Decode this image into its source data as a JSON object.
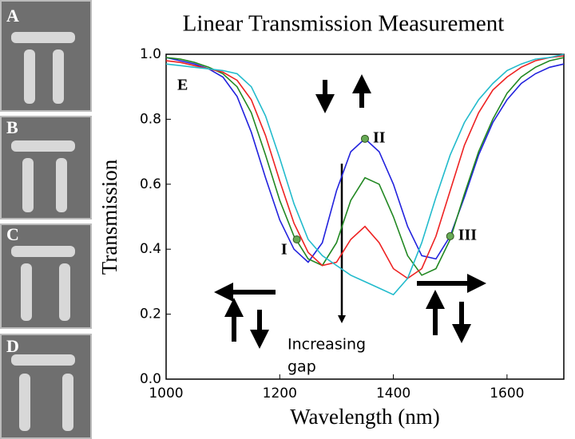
{
  "panels": [
    "A",
    "B",
    "C",
    "D"
  ],
  "chart_data": {
    "type": "line",
    "title": "Linear Transmission Measurement",
    "xlabel": "Wavelength (nm)",
    "ylabel": "Transmission",
    "panel_label": "E",
    "arrow_label": [
      "Increasing",
      "gap"
    ],
    "x": [
      1000,
      1025,
      1050,
      1075,
      1100,
      1125,
      1150,
      1175,
      1200,
      1225,
      1250,
      1275,
      1300,
      1325,
      1350,
      1375,
      1400,
      1425,
      1450,
      1475,
      1500,
      1525,
      1550,
      1575,
      1600,
      1625,
      1650,
      1675,
      1700
    ],
    "series": [
      {
        "color": "#2222dd",
        "values": [
          0.99,
          0.98,
          0.97,
          0.955,
          0.93,
          0.87,
          0.76,
          0.62,
          0.49,
          0.4,
          0.36,
          0.42,
          0.58,
          0.7,
          0.74,
          0.7,
          0.6,
          0.47,
          0.38,
          0.37,
          0.44,
          0.56,
          0.69,
          0.79,
          0.86,
          0.91,
          0.94,
          0.96,
          0.97
        ]
      },
      {
        "color": "#228822",
        "values": [
          0.99,
          0.985,
          0.975,
          0.96,
          0.94,
          0.9,
          0.82,
          0.69,
          0.55,
          0.44,
          0.37,
          0.35,
          0.42,
          0.55,
          0.62,
          0.6,
          0.5,
          0.38,
          0.32,
          0.34,
          0.43,
          0.57,
          0.7,
          0.8,
          0.88,
          0.93,
          0.96,
          0.98,
          0.99
        ]
      },
      {
        "color": "#ee2222",
        "values": [
          0.98,
          0.975,
          0.965,
          0.955,
          0.945,
          0.92,
          0.86,
          0.75,
          0.61,
          0.48,
          0.39,
          0.35,
          0.36,
          0.43,
          0.47,
          0.42,
          0.34,
          0.31,
          0.34,
          0.44,
          0.58,
          0.72,
          0.82,
          0.89,
          0.93,
          0.96,
          0.98,
          0.99,
          0.995
        ]
      },
      {
        "color": "#22bbcc",
        "values": [
          0.97,
          0.965,
          0.96,
          0.955,
          0.95,
          0.94,
          0.9,
          0.81,
          0.68,
          0.54,
          0.43,
          0.38,
          0.35,
          0.32,
          0.3,
          0.28,
          0.26,
          0.31,
          0.42,
          0.56,
          0.69,
          0.79,
          0.86,
          0.91,
          0.95,
          0.97,
          0.985,
          0.99,
          1.0
        ]
      }
    ],
    "annotations": [
      {
        "text": "I",
        "x": 1230,
        "y": 0.43
      },
      {
        "text": "II",
        "x": 1350,
        "y": 0.74
      },
      {
        "text": "III",
        "x": 1500,
        "y": 0.44
      }
    ],
    "marker_color": "#66aa55",
    "xlim": [
      1000,
      1700
    ],
    "xticks": [
      1000,
      1200,
      1400,
      1600
    ],
    "ylim": [
      0,
      1
    ],
    "yticks": [
      {
        "value": 0,
        "label": "0.0"
      },
      0.2,
      0.4,
      0.6,
      0.8,
      {
        "value": 1,
        "label": "1.0"
      }
    ],
    "grid": false
  }
}
